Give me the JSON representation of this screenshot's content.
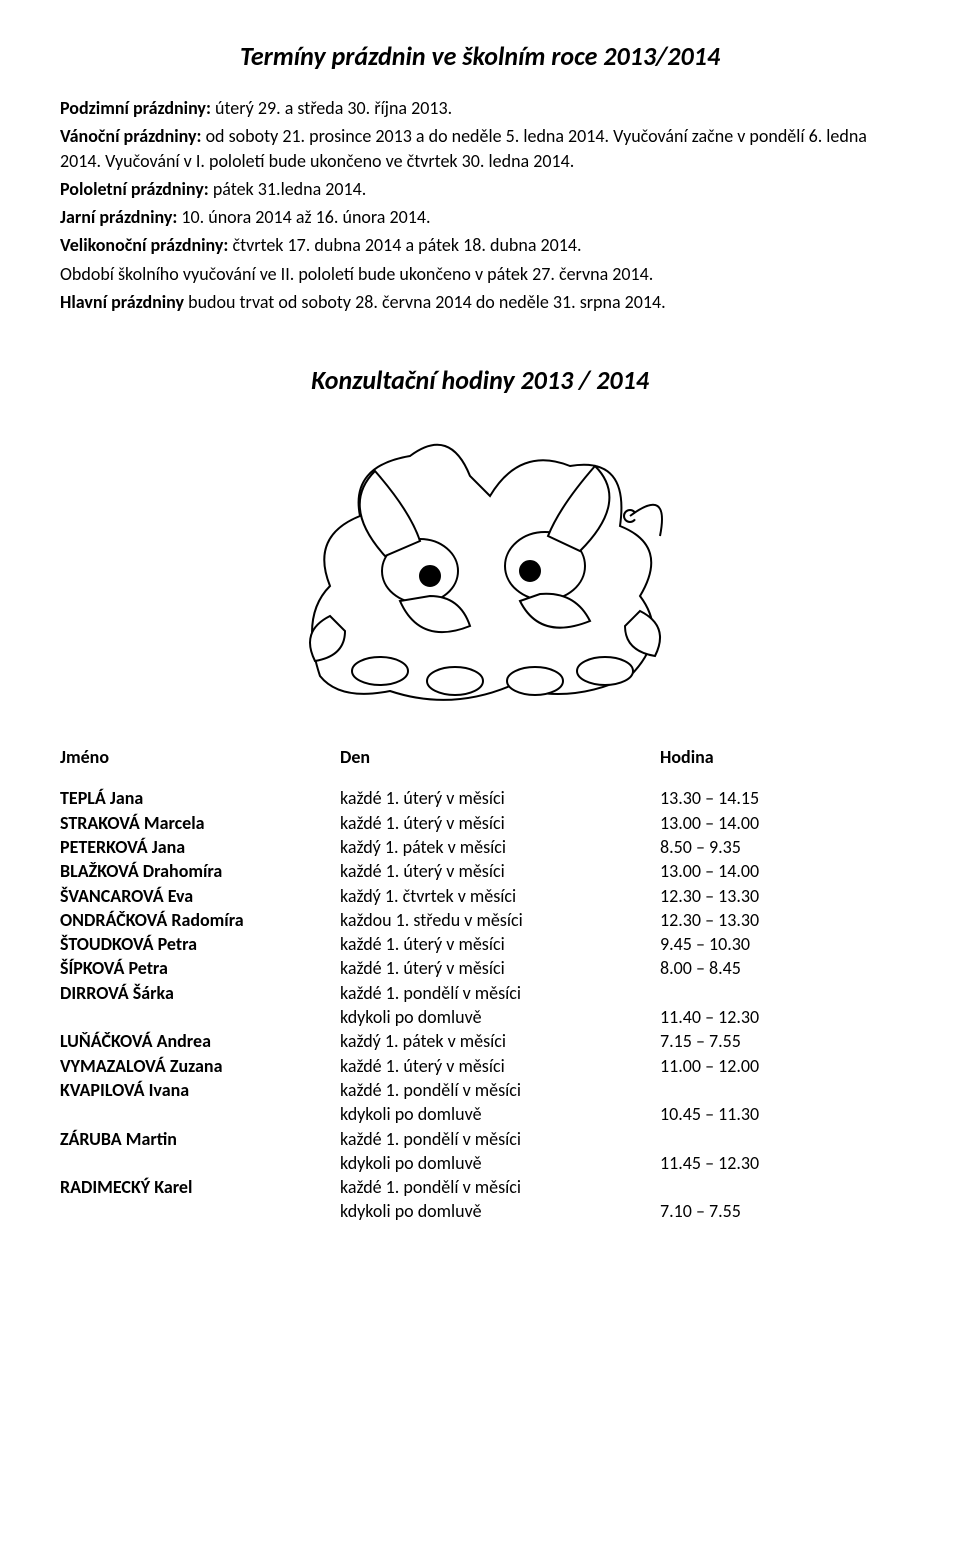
{
  "title": "Termíny prázdnin ve školním roce 2013/2014",
  "holidays": {
    "podzimni_label": "Podzimní prázdniny:",
    "podzimni_text": " úterý 29. a středa 30. října 2013.",
    "vanocni_label": "Vánoční prázdniny:",
    "vanocni_text": " od soboty 21. prosince 2013 a do neděle 5. ledna 2014. Vyučování začne v pondělí 6. ledna 2014. Vyučování v I. pololetí bude ukončeno ve čtvrtek 30. ledna 2014.",
    "pololetni_label": "Pololetní prázdniny:",
    "pololetni_text": " pátek 31.ledna 2014.",
    "jarni_label": "Jarní prázdniny:",
    "jarni_text": " 10. února 2014 až 16. února 2014.",
    "velikonocni_label": "Velikonoční prázdniny:",
    "velikonocni_text": " čtvrtek 17. dubna 2014 a pátek 18. dubna 2014.",
    "obdobi_text": "Období školního vyučování ve II. pololetí bude ukončeno v pátek 27. června 2014.",
    "hlavni_label": "Hlavní prázdniny",
    "hlavni_text": " budou trvat od soboty 28. června 2014 do neděle 31. srpna 2014."
  },
  "section2_title": "Konzultační hodiny 2013 / 2014",
  "headers": {
    "name": "Jméno",
    "day": "Den",
    "hour": "Hodina"
  },
  "rows": [
    {
      "name": "TEPLÁ Jana",
      "day": "každé 1. úterý v měsíci",
      "hour": "13.30 – 14.15"
    },
    {
      "name": "STRAKOVÁ Marcela",
      "day": "každé 1. úterý v měsíci",
      "hour": "13.00 – 14.00"
    },
    {
      "name": "PETERKOVÁ Jana",
      "day": "každý 1. pátek v měsíci",
      "hour": "8.50 – 9.35"
    },
    {
      "name": "BLAŽKOVÁ Drahomíra",
      "day": "každé 1. úterý v měsíci",
      "hour": "13.00 – 14.00"
    },
    {
      "name": "ŠVANCAROVÁ Eva",
      "day": "každý 1. čtvrtek v měsíci",
      "hour": "12.30 – 13.30"
    },
    {
      "name": "ONDRÁČKOVÁ Radomíra",
      "day": "každou 1. středu v měsíci",
      "hour": "12.30 – 13.30"
    },
    {
      "name": "ŠTOUDKOVÁ Petra",
      "day": "každé 1. úterý v měsíci",
      "hour": "9.45 – 10.30"
    },
    {
      "name": "ŠÍPKOVÁ Petra",
      "day": "každé 1. úterý v měsíci",
      "hour": "8.00 – 8.45"
    },
    {
      "name": "DIRROVÁ Šárka",
      "day": "každé 1. pondělí v měsíci",
      "hour": "",
      "sub_day": "kdykoli po domluvě",
      "sub_hour": "11.40 – 12.30"
    },
    {
      "name": "LUŇÁČKOVÁ Andrea",
      "day": "každý 1. pátek v měsíci",
      "hour": "7.15 – 7.55"
    },
    {
      "name": "VYMAZALOVÁ Zuzana",
      "day": "každé 1. úterý v měsíci",
      "hour": "11.00 – 12.00"
    },
    {
      "name": "KVAPILOVÁ Ivana",
      "day": "každé 1. pondělí v měsíci",
      "hour": "",
      "sub_day": "kdykoli po domluvě",
      "sub_hour": "10.45 – 11.30"
    },
    {
      "name": "ZÁRUBA Martin",
      "day": "každé 1. pondělí v měsíci",
      "hour": "",
      "sub_day": "kdykoli po domluvě",
      "sub_hour": "11.45 – 12.30"
    },
    {
      "name": "RADIMECKÝ Karel",
      "day": "každé 1. pondělí v měsíci",
      "hour": "",
      "sub_day": "kdykoli po domluvě",
      "sub_hour": "7.10 – 7.55"
    }
  ],
  "style": {
    "background_color": "#ffffff",
    "text_color": "#000000",
    "title_fontsize": 26,
    "body_fontsize": 18,
    "font_family": "Calibri, Arial, sans-serif",
    "col_name_width": 280,
    "col_day_width": 320,
    "col_hour_width": 200
  }
}
